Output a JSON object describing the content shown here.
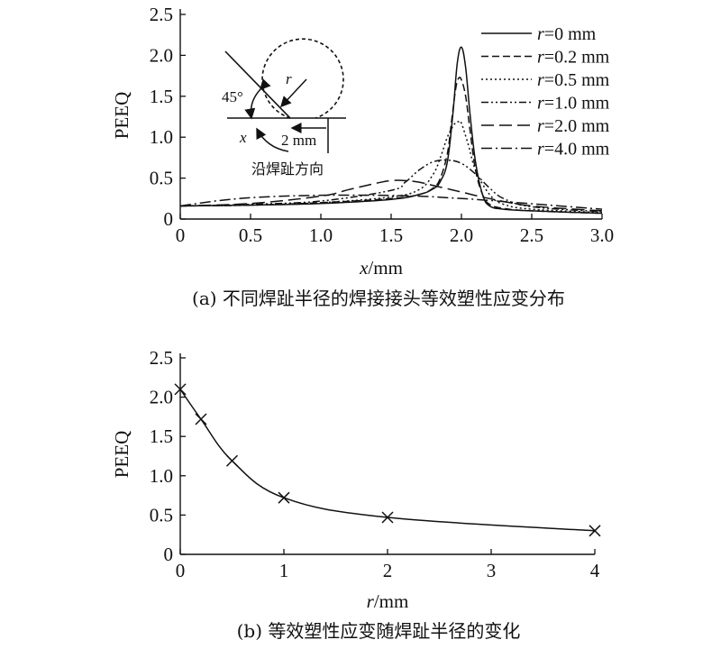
{
  "chart_data": [
    {
      "type": "line",
      "caption": "(a) 不同焊趾半径的焊接接头等效塑性应变分布",
      "xlabel_var": "x",
      "xlabel_unit": "/mm",
      "ylabel": "PEEQ",
      "xlim": [
        0,
        3.0
      ],
      "ylim": [
        0,
        2.5
      ],
      "xticks": [
        "0",
        "0.5",
        "1.0",
        "1.5",
        "2.0",
        "2.5",
        "3.0"
      ],
      "xtick_values": [
        0,
        0.5,
        1.0,
        1.5,
        2.0,
        2.5,
        3.0
      ],
      "yticks": [
        "0",
        "0.5",
        "1.0",
        "1.5",
        "2.0",
        "2.5"
      ],
      "ytick_values": [
        0,
        0.5,
        1.0,
        1.5,
        2.0,
        2.5
      ],
      "legend_position": "top-right",
      "series": [
        {
          "name_var": "r",
          "name_rest": "=0 mm",
          "dash": "none",
          "x": [
            0,
            0.5,
            1.0,
            1.5,
            1.7,
            1.8,
            1.85,
            1.9,
            1.94,
            1.97,
            2.0,
            2.03,
            2.06,
            2.1,
            2.15,
            2.2,
            2.3,
            2.5,
            3.0
          ],
          "y": [
            0.16,
            0.17,
            0.19,
            0.24,
            0.3,
            0.37,
            0.46,
            0.7,
            1.3,
            1.9,
            2.1,
            1.85,
            1.3,
            0.7,
            0.3,
            0.16,
            0.12,
            0.1,
            0.07
          ]
        },
        {
          "name_var": "r",
          "name_rest": "=0.2 mm",
          "dash": "8,4",
          "x": [
            0,
            0.5,
            1.0,
            1.5,
            1.7,
            1.8,
            1.85,
            1.9,
            1.93,
            1.96,
            1.98,
            2.0,
            2.03,
            2.06,
            2.1,
            2.15,
            2.2,
            2.3,
            2.5,
            3.0
          ],
          "y": [
            0.16,
            0.17,
            0.2,
            0.25,
            0.3,
            0.38,
            0.5,
            0.8,
            1.2,
            1.6,
            1.72,
            1.7,
            1.5,
            1.1,
            0.6,
            0.3,
            0.18,
            0.13,
            0.1,
            0.07
          ]
        },
        {
          "name_var": "r",
          "name_rest": "=0.5 mm",
          "dash": "2,3",
          "x": [
            0,
            0.5,
            1.0,
            1.5,
            1.7,
            1.8,
            1.85,
            1.9,
            1.95,
            1.98,
            2.0,
            2.05,
            2.1,
            2.2,
            2.3,
            2.5,
            3.0
          ],
          "y": [
            0.16,
            0.17,
            0.2,
            0.27,
            0.36,
            0.55,
            0.75,
            1.0,
            1.16,
            1.19,
            1.17,
            0.9,
            0.6,
            0.3,
            0.18,
            0.12,
            0.08
          ]
        },
        {
          "name_var": "r",
          "name_rest": "=1.0 mm",
          "dash": "8,3,2,3,2,3",
          "x": [
            0,
            0.5,
            1.0,
            1.5,
            1.6,
            1.7,
            1.8,
            1.9,
            2.0,
            2.1,
            2.2,
            2.3,
            2.5,
            3.0
          ],
          "y": [
            0.16,
            0.18,
            0.22,
            0.35,
            0.45,
            0.6,
            0.7,
            0.72,
            0.68,
            0.55,
            0.38,
            0.25,
            0.15,
            0.09
          ]
        },
        {
          "name_var": "r",
          "name_rest": "=2.0 mm",
          "dash": "14,6",
          "x": [
            0,
            0.5,
            1.0,
            1.2,
            1.4,
            1.5,
            1.6,
            1.7,
            1.8,
            1.9,
            2.0,
            2.2,
            2.5,
            3.0
          ],
          "y": [
            0.16,
            0.19,
            0.28,
            0.36,
            0.44,
            0.47,
            0.47,
            0.45,
            0.41,
            0.37,
            0.33,
            0.25,
            0.16,
            0.1
          ]
        },
        {
          "name_var": "r",
          "name_rest": "=4.0 mm",
          "dash": "12,4,2,4",
          "x": [
            0,
            0.3,
            0.6,
            1.0,
            1.4,
            1.7,
            1.9,
            2.1,
            2.4,
            2.7,
            3.0
          ],
          "y": [
            0.16,
            0.23,
            0.27,
            0.29,
            0.29,
            0.28,
            0.26,
            0.24,
            0.2,
            0.16,
            0.12
          ]
        }
      ],
      "inset": {
        "angle": "45°",
        "r_label": "r",
        "x_label": "x",
        "dist": "2 mm",
        "direction": "沿焊趾方向"
      }
    },
    {
      "type": "line",
      "caption": "(b) 等效塑性应变随焊趾半径的变化",
      "xlabel_var": "r",
      "xlabel_unit": "/mm",
      "ylabel": "PEEQ",
      "xlim": [
        0,
        4
      ],
      "ylim": [
        0,
        2.5
      ],
      "xticks": [
        "0",
        "1",
        "2",
        "3",
        "4"
      ],
      "xtick_values": [
        0,
        1,
        2,
        3,
        4
      ],
      "yticks": [
        "0",
        "0.5",
        "1.0",
        "1.5",
        "2.0",
        "2.5"
      ],
      "ytick_values": [
        0,
        0.5,
        1.0,
        1.5,
        2.0,
        2.5
      ],
      "series": [
        {
          "markers": "x",
          "x": [
            0,
            0.2,
            0.5,
            1.0,
            2.0,
            4.0
          ],
          "y": [
            2.1,
            1.72,
            1.19,
            0.72,
            0.47,
            0.3
          ]
        }
      ]
    }
  ]
}
